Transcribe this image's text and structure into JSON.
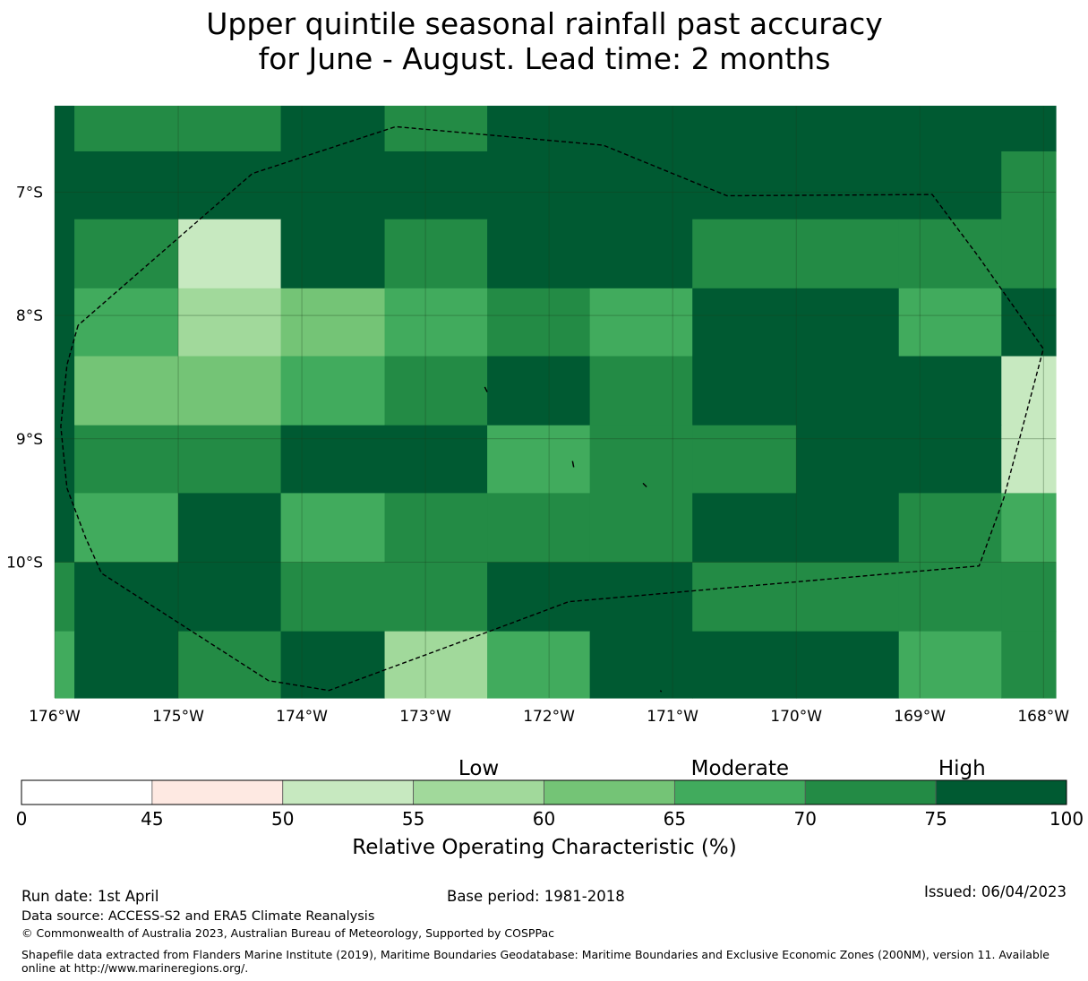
{
  "chart_data": {
    "type": "heatmap",
    "title_lines": [
      "Upper quintile seasonal rainfall past accuracy",
      "for June - August. Lead time: 2 months"
    ],
    "x_axis": {
      "range": [
        -176.0,
        -167.9
      ],
      "ticks": [
        -176,
        -175,
        -174,
        -173,
        -172,
        -171,
        -170,
        -169,
        -168
      ],
      "tick_labels": [
        "176°W",
        "175°W",
        "174°W",
        "173°W",
        "172°W",
        "171°W",
        "170°W",
        "169°W",
        "168°W"
      ]
    },
    "y_axis": {
      "range": [
        -6.3,
        -11.1
      ],
      "ticks": [
        -7,
        -8,
        -9,
        -10
      ],
      "tick_labels": [
        "7°S",
        "8°S",
        "9°S",
        "10°S"
      ]
    },
    "cell_lon_edges": [
      -176.0,
      -175.84,
      -175.0,
      -174.17,
      -173.33,
      -172.5,
      -171.67,
      -170.84,
      -170.0,
      -169.17,
      -168.34,
      -167.9
    ],
    "cell_lat_edges": [
      -6.3,
      -6.67,
      -7.22,
      -7.78,
      -8.33,
      -8.89,
      -9.44,
      -10.0,
      -10.56,
      -11.1
    ],
    "grid_classes": [
      [
        7,
        6,
        6,
        7,
        6,
        7,
        7,
        7,
        7,
        7,
        7
      ],
      [
        7,
        7,
        7,
        7,
        7,
        7,
        7,
        7,
        7,
        7,
        6
      ],
      [
        7,
        6,
        2,
        7,
        6,
        7,
        7,
        6,
        6,
        6,
        6
      ],
      [
        7,
        5,
        3,
        4,
        5,
        6,
        5,
        7,
        7,
        5,
        7
      ],
      [
        7,
        4,
        4,
        5,
        6,
        7,
        6,
        7,
        7,
        7,
        2
      ],
      [
        7,
        6,
        6,
        7,
        7,
        5,
        6,
        6,
        7,
        7,
        2
      ],
      [
        7,
        5,
        7,
        5,
        6,
        6,
        6,
        7,
        7,
        6,
        5
      ],
      [
        6,
        7,
        7,
        6,
        6,
        7,
        7,
        6,
        6,
        6,
        6
      ],
      [
        5,
        7,
        6,
        7,
        3,
        5,
        7,
        7,
        7,
        5,
        6
      ]
    ],
    "boundary_path": [
      [
        -175.81,
        -8.08
      ],
      [
        -175.9,
        -8.4
      ],
      [
        -175.95,
        -8.9
      ],
      [
        -175.9,
        -9.4
      ],
      [
        -175.75,
        -9.8
      ],
      [
        -175.62,
        -10.09
      ],
      [
        -174.27,
        -10.96
      ],
      [
        -173.78,
        -11.04
      ],
      [
        -172.48,
        -10.56
      ],
      [
        -171.84,
        -10.32
      ],
      [
        -168.52,
        -10.03
      ],
      [
        -168.32,
        -9.48
      ],
      [
        -168.0,
        -8.27
      ],
      [
        -168.52,
        -7.53
      ],
      [
        -168.9,
        -7.02
      ],
      [
        -170.56,
        -7.03
      ],
      [
        -171.56,
        -6.62
      ],
      [
        -173.24,
        -6.47
      ],
      [
        -174.4,
        -6.85
      ],
      [
        -175.81,
        -8.08
      ]
    ],
    "island_marks": [
      [
        [
          -172.52,
          -8.58
        ],
        [
          -172.5,
          -8.62
        ]
      ],
      [
        [
          -171.81,
          -9.18
        ],
        [
          -171.8,
          -9.23
        ]
      ],
      [
        [
          -171.24,
          -9.36
        ],
        [
          -171.21,
          -9.39
        ]
      ],
      [
        [
          -171.1,
          -11.04
        ],
        [
          -171.09,
          -11.05
        ]
      ]
    ],
    "colorbar": {
      "bounds": [
        0,
        45,
        50,
        55,
        60,
        65,
        70,
        75,
        100
      ],
      "tick_labels": [
        "0",
        "45",
        "50",
        "55",
        "60",
        "65",
        "70",
        "75",
        "100"
      ],
      "colors": [
        "#ffffff",
        "#fee9e2",
        "#c7e9c0",
        "#a1d99b",
        "#74c476",
        "#41ab5d",
        "#238b45",
        "#005a32"
      ],
      "categories": [
        {
          "label": "Low",
          "at": 57.5
        },
        {
          "label": "Moderate",
          "at": 67.5
        },
        {
          "label": "High",
          "at": 80
        }
      ],
      "label": "Relative Operating Characteristic (%)"
    }
  },
  "footer": {
    "run_date": "Run date: 1st April",
    "base_period": "Base period: 1981-2018",
    "issued": "Issued: 06/04/2023",
    "data_source": "Data source: ACCESS-S2 and ERA5 Climate Reanalysis",
    "copyright": "© Commonwealth of Australia 2023, Australian Bureau of Meteorology, Supported by COSPPac",
    "shapefile": "Shapefile data extracted from Flanders Marine Institute (2019), Maritime Boundaries Geodatabase: Maritime Boundaries and Exclusive Economic Zones (200NM), version 11. Available online at http://www.marineregions.org/."
  }
}
